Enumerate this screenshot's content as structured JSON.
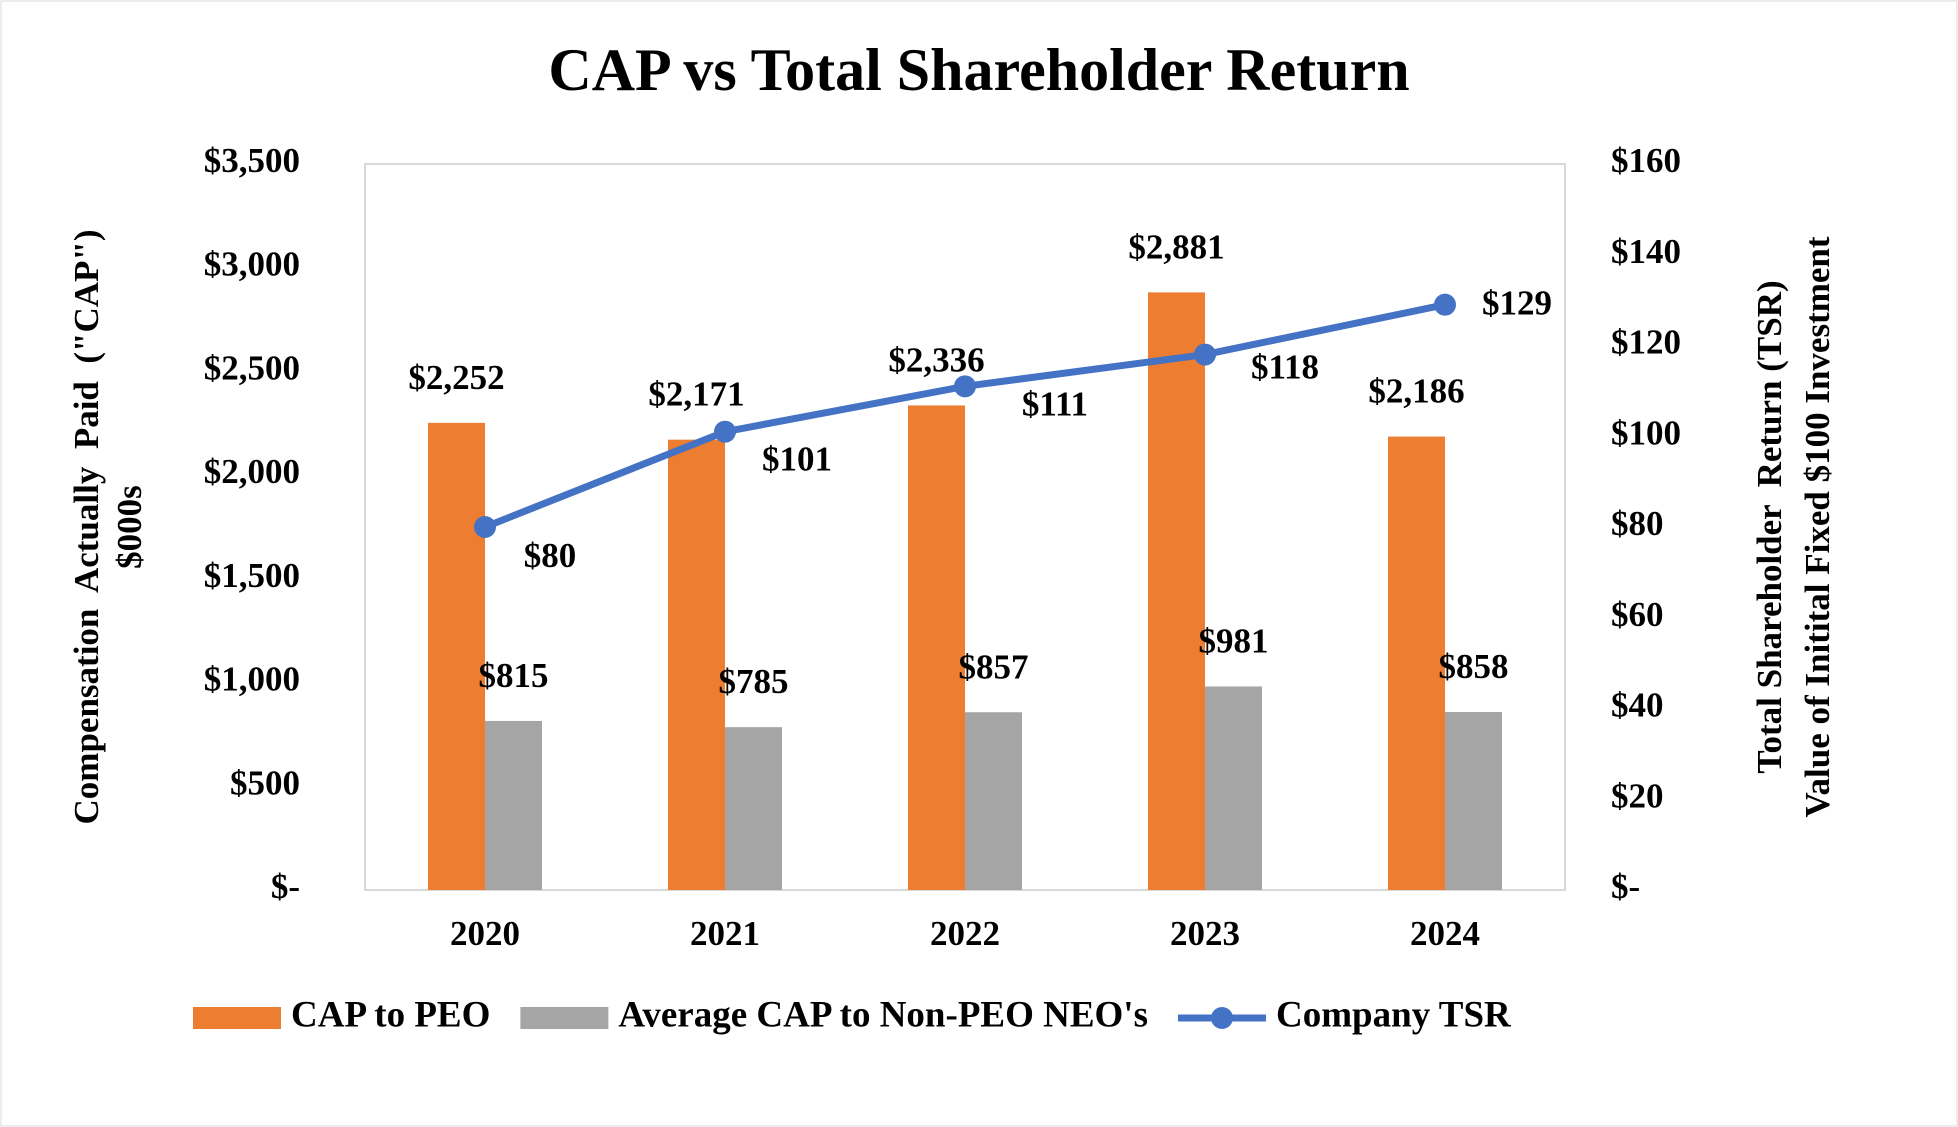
{
  "chart_data": {
    "type": "bar-line",
    "title": "CAP vs Total Shareholder Return",
    "y_label": [
      "Compensation  Actually  Paid  (\"CAP\")",
      "$000s"
    ],
    "y2_label": [
      "Total Shareholder  Return (TSR)",
      "Value of Initital Fixed $100 Investment"
    ],
    "categories": [
      "2020",
      "2021",
      "2022",
      "2023",
      "2024"
    ],
    "ylim": [
      0,
      3500
    ],
    "yticks": [
      {
        "value": 0,
        "label": "$-"
      },
      {
        "value": 500,
        "label": "$500"
      },
      {
        "value": 1000,
        "label": "$1,000"
      },
      {
        "value": 1500,
        "label": "$1,500"
      },
      {
        "value": 2000,
        "label": "$2,000"
      },
      {
        "value": 2500,
        "label": "$2,500"
      },
      {
        "value": 3000,
        "label": "$3,000"
      },
      {
        "value": 3500,
        "label": "$3,500"
      }
    ],
    "y2lim": [
      0,
      160
    ],
    "y2ticks": [
      {
        "value": 0,
        "label": "$-"
      },
      {
        "value": 20,
        "label": "$20"
      },
      {
        "value": 40,
        "label": "$40"
      },
      {
        "value": 60,
        "label": "$60"
      },
      {
        "value": 80,
        "label": "$80"
      },
      {
        "value": 100,
        "label": "$100"
      },
      {
        "value": 120,
        "label": "$120"
      },
      {
        "value": 140,
        "label": "$140"
      },
      {
        "value": 160,
        "label": "$160"
      }
    ],
    "series": [
      {
        "name": "CAP to PEO",
        "type": "bar",
        "color": "#ed7d31",
        "values": [
          2252,
          2171,
          2336,
          2881,
          2186
        ],
        "value_labels": [
          "$2,252",
          "$2,171",
          "$2,336",
          "$2,881",
          "$2,186"
        ]
      },
      {
        "name": "Average CAP to Non-PEO NEO's",
        "type": "bar",
        "color": "#a5a5a5",
        "values": [
          815,
          785,
          857,
          981,
          858
        ],
        "value_labels": [
          "$815",
          "$785",
          "$857",
          "$981",
          "$858"
        ]
      },
      {
        "name": "Company TSR",
        "type": "line",
        "axis": "y2",
        "color": "#4472c4",
        "values": [
          80,
          101,
          111,
          118,
          129
        ],
        "value_labels": [
          "$80",
          "$101",
          "$111",
          "$118",
          "$129"
        ]
      }
    ]
  }
}
